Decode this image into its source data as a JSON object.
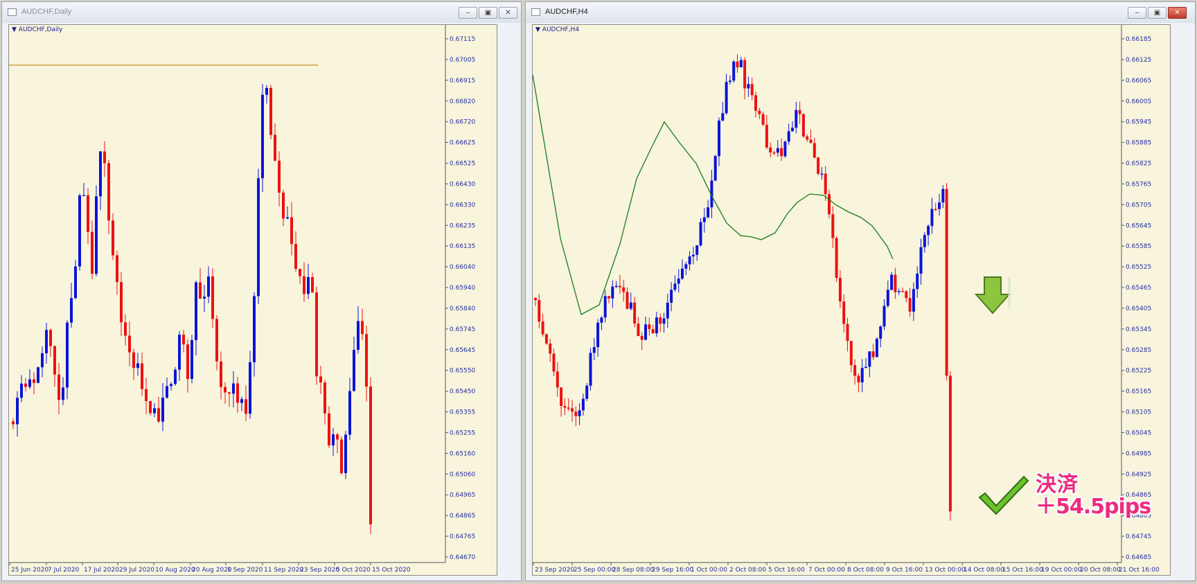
{
  "left_window": {
    "title": "AUDCHF,Daily",
    "symbol_label": "AUDCHF,Daily",
    "controls": [
      "minimize-icon",
      "maximize-icon",
      "close-icon"
    ],
    "price_labels": [
      "0.67115",
      "0.67005",
      "0.66915",
      "0.66820",
      "0.66720",
      "0.66625",
      "0.66525",
      "0.66430",
      "0.66330",
      "0.66235",
      "0.66135",
      "0.66040",
      "0.65940",
      "0.65840",
      "0.65745",
      "0.65645",
      "0.65550",
      "0.65450",
      "0.65355",
      "0.65255",
      "0.65160",
      "0.65060",
      "0.64965",
      "0.64865",
      "0.64765",
      "0.64670"
    ],
    "date_labels": [
      "25 Jun 2020",
      "7 Jul 2020",
      "17 Jul 2020",
      "29 Jul 2020",
      "10 Aug 2020",
      "20 Aug 2020",
      "1 Sep 2020",
      "11 Sep 2020",
      "23 Sep 2020",
      "5 Oct 2020",
      "15 Oct 2020"
    ]
  },
  "right_window": {
    "title": "AUDCHF,H4",
    "symbol_label": "AUDCHF,H4",
    "controls": [
      "minimize-icon",
      "maximize-icon",
      "close-icon"
    ],
    "price_labels": [
      "0.66185",
      "0.66125",
      "0.66065",
      "0.66005",
      "0.65945",
      "0.65885",
      "0.65825",
      "0.65765",
      "0.65705",
      "0.65645",
      "0.65585",
      "0.65525",
      "0.65465",
      "0.65405",
      "0.65345",
      "0.65285",
      "0.65225",
      "0.65165",
      "0.65105",
      "0.65045",
      "0.64985",
      "0.64925",
      "0.64865",
      "0.64805",
      "0.64745",
      "0.64685"
    ],
    "date_labels": [
      "23 Sep 2020",
      "25 Sep 00:00",
      "28 Sep 08:00",
      "29 Sep 16:00",
      "1 Oct 00:00",
      "2 Oct 08:00",
      "5 Oct 16:00",
      "7 Oct 00:00",
      "8 Oct 08:00",
      "9 Oct 16:00",
      "13 Oct 00:00",
      "14 Oct 08:00",
      "15 Oct 16:00",
      "19 Oct 00:00",
      "20 Oct 08:00",
      "21 Oct 16:00"
    ]
  },
  "annotation": {
    "line1": "決済",
    "line2": "＋54.5pips"
  },
  "colors": {
    "bull": "#0a14d8",
    "bear": "#ee1111",
    "ma": "#1a7a1a",
    "hline": "#c8902a",
    "chart_bg": "#f8f5dc",
    "axis_text": "#2030a0"
  }
}
